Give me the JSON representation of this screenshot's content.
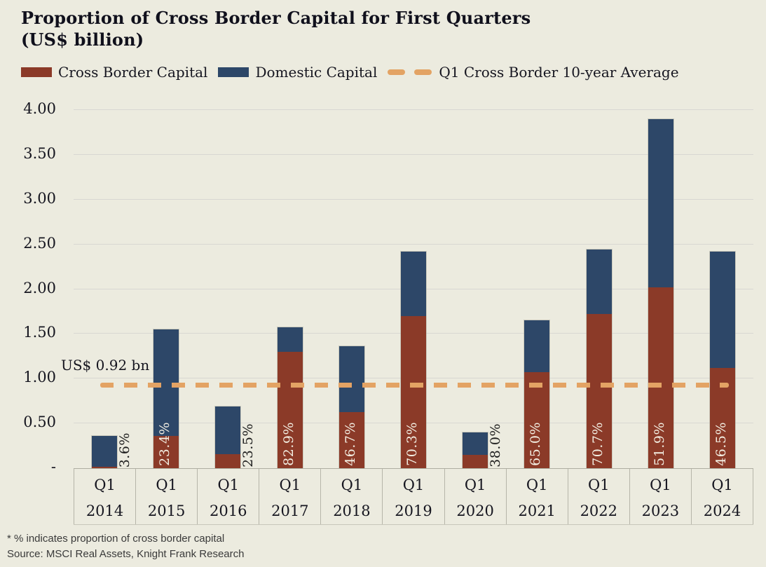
{
  "title": {
    "line1": "Proportion of Cross Border Capital for First Quarters",
    "line2": "(US$ billion)"
  },
  "legend": [
    {
      "label": "Cross Border Capital",
      "type": "swatch",
      "color": "#8b3a28"
    },
    {
      "label": "Domestic Capital",
      "type": "swatch",
      "color": "#2d4768"
    },
    {
      "label": "Q1 Cross Border 10-year Average",
      "type": "dash",
      "color": "#e3a364"
    }
  ],
  "colors": {
    "background": "#ecebdf",
    "cross_border": "#8b3a28",
    "domestic": "#2d4768",
    "average_line": "#e3a364",
    "gridline": "#d8d7d2",
    "text": "#15151f"
  },
  "chart_data": {
    "type": "bar",
    "stacked": true,
    "title": "Proportion of Cross Border Capital for First Quarters (US$ billion)",
    "xlabel": "",
    "ylabel": "",
    "ylim": [
      0,
      4.0
    ],
    "grid": true,
    "legend_position": "top",
    "categories": [
      {
        "period": "Q1",
        "year": "2014"
      },
      {
        "period": "Q1",
        "year": "2015"
      },
      {
        "period": "Q1",
        "year": "2016"
      },
      {
        "period": "Q1",
        "year": "2017"
      },
      {
        "period": "Q1",
        "year": "2018"
      },
      {
        "period": "Q1",
        "year": "2019"
      },
      {
        "period": "Q1",
        "year": "2020"
      },
      {
        "period": "Q1",
        "year": "2021"
      },
      {
        "period": "Q1",
        "year": "2022"
      },
      {
        "period": "Q1",
        "year": "2023"
      },
      {
        "period": "Q1",
        "year": "2024"
      }
    ],
    "series": [
      {
        "name": "Cross Border Capital",
        "color": "#8b3a28",
        "values": [
          0.013,
          0.36,
          0.16,
          1.3,
          0.63,
          1.7,
          0.15,
          1.07,
          1.72,
          2.02,
          1.12
        ]
      },
      {
        "name": "Domestic Capital",
        "color": "#2d4768",
        "values": [
          0.35,
          1.19,
          0.53,
          0.27,
          0.73,
          0.72,
          0.25,
          0.58,
          0.72,
          1.88,
          1.3
        ]
      }
    ],
    "totals": [
      0.36,
      1.55,
      0.69,
      1.57,
      1.36,
      2.42,
      0.4,
      1.65,
      2.44,
      3.9,
      2.42
    ],
    "pct_labels": [
      "3.6%",
      "23.4%",
      "23.5%",
      "82.9%",
      "46.7%",
      "70.3%",
      "38.0%",
      "65.0%",
      "70.7%",
      "51.9%",
      "46.5%"
    ],
    "average_line": {
      "value": 0.92,
      "label": "US$ 0.92 bn"
    },
    "y_axis": {
      "ticks": [
        {
          "label": "4.00",
          "value": 4.0
        },
        {
          "label": "3.50",
          "value": 3.5
        },
        {
          "label": "3.00",
          "value": 3.0
        },
        {
          "label": "2.50",
          "value": 2.5
        },
        {
          "label": "2.00",
          "value": 2.0
        },
        {
          "label": "1.50",
          "value": 1.5
        },
        {
          "label": "1.00",
          "value": 1.0
        },
        {
          "label": "0.50",
          "value": 0.5
        },
        {
          "label": "-",
          "value": 0.0
        }
      ]
    }
  },
  "footnotes": {
    "line1": "* % indicates proportion of cross border capital",
    "line2": "Source: MSCI Real Assets, Knight Frank Research"
  }
}
